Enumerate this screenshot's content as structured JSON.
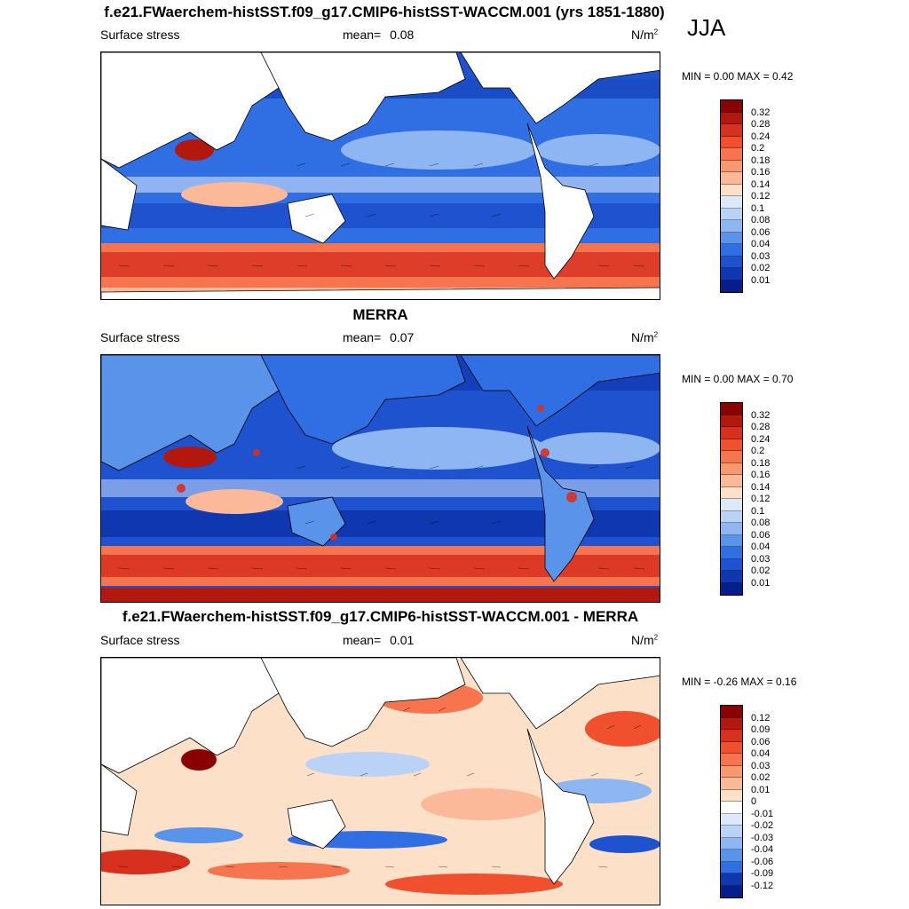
{
  "season": "JJA",
  "panels": [
    {
      "id": "model",
      "title": "f.e21.FWaerchem-histSST.f09_g17.CMIP6-histSST-WACCM.001 (yrs 1851-1880)",
      "left_label": "Surface stress",
      "mean_label": "mean=",
      "mean_value": "0.08",
      "units_base": "N/m",
      "units_exp": "2",
      "minmax": "MIN =   0.00 MAX =   0.42",
      "colorbar_levels": [
        "0.32",
        "0.28",
        "0.24",
        "0.2",
        "0.18",
        "0.16",
        "0.14",
        "0.12",
        "0.1",
        "0.08",
        "0.06",
        "0.04",
        "0.03",
        "0.02",
        "0.01"
      ],
      "colorbar_colors": [
        "#8b0000",
        "#b2180e",
        "#d7301f",
        "#f0502d",
        "#f6754f",
        "#f8986f",
        "#fbb99a",
        "#fde0c8",
        "#dbe9fb",
        "#b9d2f6",
        "#8eb6f2",
        "#5a93ea",
        "#2f6fe3",
        "#1f52cf",
        "#0e37b0",
        "#061e8a"
      ]
    },
    {
      "id": "obs",
      "title": "MERRA",
      "left_label": "Surface stress",
      "mean_label": "mean=",
      "mean_value": "0.07",
      "units_base": "N/m",
      "units_exp": "2",
      "minmax": "MIN =   0.00 MAX =   0.70",
      "colorbar_levels": [
        "0.32",
        "0.28",
        "0.24",
        "0.2",
        "0.18",
        "0.16",
        "0.14",
        "0.12",
        "0.1",
        "0.08",
        "0.06",
        "0.04",
        "0.03",
        "0.02",
        "0.01"
      ],
      "colorbar_colors": [
        "#8b0000",
        "#b2180e",
        "#d7301f",
        "#f0502d",
        "#f6754f",
        "#f8986f",
        "#fbb99a",
        "#fde0c8",
        "#dbe9fb",
        "#b9d2f6",
        "#8eb6f2",
        "#5a93ea",
        "#2f6fe3",
        "#1f52cf",
        "#0e37b0",
        "#061e8a"
      ]
    },
    {
      "id": "diff",
      "title": "f.e21.FWaerchem-histSST.f09_g17.CMIP6-histSST-WACCM.001 - MERRA",
      "left_label": "Surface stress",
      "mean_label": "mean=",
      "mean_value": "0.01",
      "units_base": "N/m",
      "units_exp": "2",
      "minmax": "MIN =  -0.26 MAX =   0.16",
      "colorbar_levels": [
        "0.12",
        "0.09",
        "0.06",
        "0.04",
        "0.03",
        "0.02",
        "0.01",
        "0",
        "-0.01",
        "-0.02",
        "-0.03",
        "-0.04",
        "-0.06",
        "-0.09",
        "-0.12"
      ],
      "colorbar_colors": [
        "#8b0000",
        "#b2180e",
        "#d7301f",
        "#f0502d",
        "#f6754f",
        "#f8986f",
        "#fbb99a",
        "#fde0c8",
        "#ffffff",
        "#dbe9fb",
        "#b9d2f6",
        "#8eb6f2",
        "#5a93ea",
        "#2f6fe3",
        "#0e37b0",
        "#061e8a"
      ]
    }
  ]
}
